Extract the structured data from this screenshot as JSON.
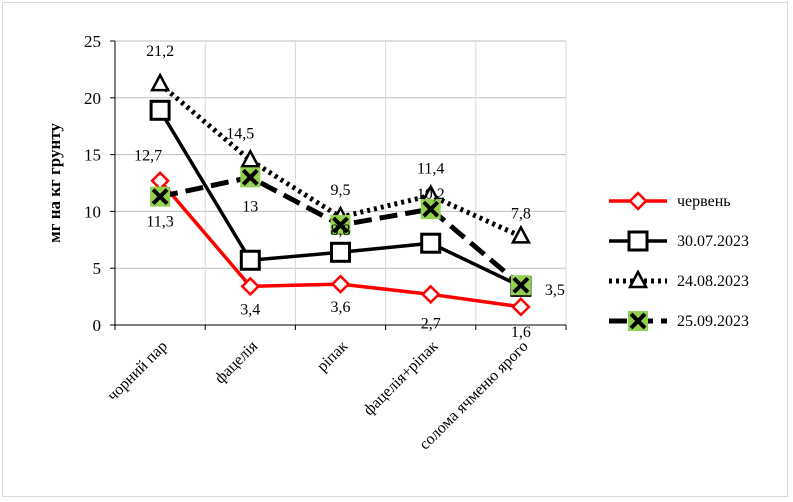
{
  "chart_data": {
    "type": "line",
    "title": "",
    "xlabel": "",
    "ylabel": "мг на кг грунту",
    "ylim": [
      0,
      25
    ],
    "yticks": [
      0,
      5,
      10,
      15,
      20,
      25
    ],
    "grid": true,
    "legend_position": "right",
    "categories": [
      "чорний пар",
      "фацелія",
      "ріпак",
      "фацелія+ріпак",
      "солома ячменю ярого"
    ],
    "series": [
      {
        "name": "червень",
        "values": [
          12.7,
          3.4,
          3.6,
          2.7,
          1.6
        ],
        "labels": [
          "12,7",
          "3,4",
          "3,6",
          "2,7",
          "1,6"
        ],
        "color": "#ff0000",
        "style": "solid",
        "marker": "diamond"
      },
      {
        "name": "30.07.2023",
        "values": [
          18.9,
          5.7,
          6.4,
          7.2,
          3.4
        ],
        "labels": [
          "",
          "",
          "",
          "",
          ""
        ],
        "color": "#000000",
        "style": "solid",
        "marker": "square"
      },
      {
        "name": "24.08.2023",
        "values": [
          21.2,
          14.5,
          9.5,
          11.4,
          7.8
        ],
        "labels": [
          "21,2",
          "14,5",
          "9,5",
          "11,4",
          "7,8"
        ],
        "color": "#000000",
        "style": "dotted",
        "marker": "triangle"
      },
      {
        "name": "25.09.2023",
        "values": [
          11.3,
          13,
          8.8,
          10.2,
          3.5
        ],
        "labels": [
          "11,3",
          "13",
          "8,8",
          "10,2",
          "3,5"
        ],
        "color": "#000000",
        "style": "dashed",
        "marker": "x-green"
      }
    ]
  }
}
